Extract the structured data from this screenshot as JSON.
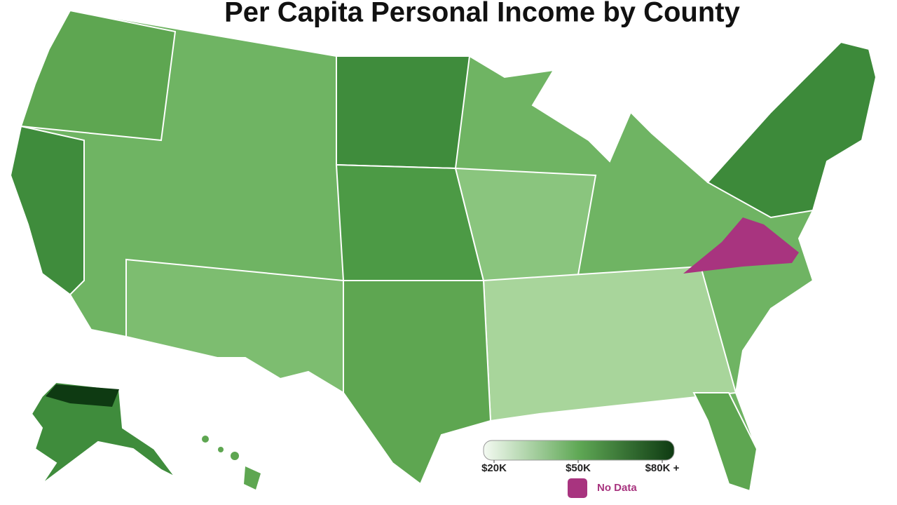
{
  "title": "Per Capita Personal Income by County",
  "legend": {
    "range": [
      20000,
      80000
    ],
    "ticks": [
      {
        "value": 20000,
        "label": "$20K"
      },
      {
        "value": 50000,
        "label": "$50K"
      },
      {
        "value": 80000,
        "label": "$80K +"
      }
    ],
    "low_color": "#f4faf2",
    "high_color": "#0e3a12",
    "no_data_label": "No Data",
    "no_data_color": "#a8347f"
  }
}
